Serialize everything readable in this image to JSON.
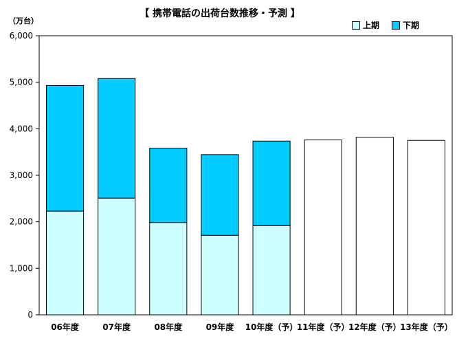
{
  "chart_data": {
    "type": "bar",
    "stacked": true,
    "title": "【 携帯電話の出荷台数推移・予測 】",
    "ylabel": "（万台）",
    "xlabel": "",
    "categories": [
      "06年度",
      "07年度",
      "08年度",
      "09年度",
      "10年度（予）",
      "11年度（予）",
      "12年度（予）",
      "13年度（予）"
    ],
    "series": [
      {
        "name": "上期",
        "color": "#ccffff",
        "values": [
          2230,
          2510,
          1985,
          1710,
          1915,
          null,
          null,
          null
        ]
      },
      {
        "name": "下期",
        "color": "#00ccff",
        "values": [
          2700,
          2570,
          1600,
          1735,
          1820,
          null,
          null,
          null
        ]
      }
    ],
    "totals_only": [
      null,
      null,
      null,
      null,
      null,
      3760,
      3820,
      3750
    ],
    "ylim": [
      0,
      6000
    ],
    "yticks": [
      0,
      1000,
      2000,
      3000,
      4000,
      5000,
      6000
    ],
    "ytick_labels": [
      "0",
      "1,000",
      "2,000",
      "3,000",
      "4,000",
      "5,000",
      "6,000"
    ],
    "grid": false,
    "legend_position": "top-right"
  }
}
